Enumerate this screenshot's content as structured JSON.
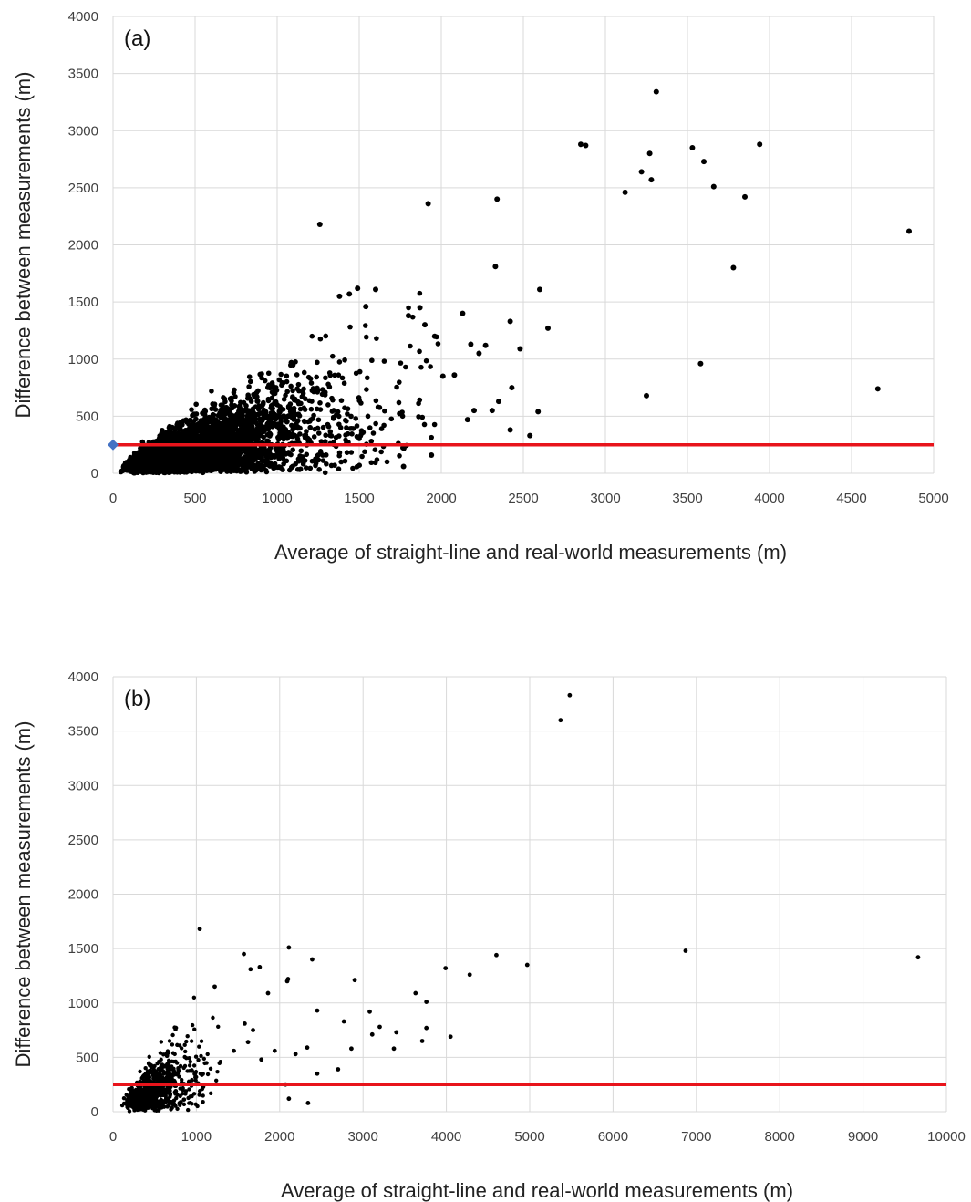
{
  "chart_data": [
    {
      "type": "scatter",
      "panel_label": "(a)",
      "xlabel": "Average of straight-line and real-world measurements (m)",
      "ylabel": "Difference between measurements (m)",
      "xlim": [
        0,
        5000
      ],
      "ylim": [
        0,
        4000
      ],
      "x_ticks": [
        0,
        500,
        1000,
        1500,
        2000,
        2500,
        3000,
        3500,
        4000,
        4500,
        5000
      ],
      "y_ticks": [
        0,
        500,
        1000,
        1500,
        2000,
        2500,
        3000,
        3500,
        4000
      ],
      "grid": true,
      "reference_line": {
        "y": 250,
        "color": "#e8141b"
      },
      "highlight_point": {
        "x": 0,
        "y": 250,
        "color": "#4472c4",
        "shape": "diamond"
      },
      "point_color": "#000000",
      "dense_cluster": {
        "x_range": [
          0,
          2000
        ],
        "description": "thousands of points concentrated below x=2000, y=1600"
      },
      "points": [
        [
          1260,
          2180
        ],
        [
          1920,
          2360
        ],
        [
          2340,
          2400
        ],
        [
          2330,
          1810
        ],
        [
          2600,
          1610
        ],
        [
          2650,
          1270
        ],
        [
          2130,
          1400
        ],
        [
          2420,
          1330
        ],
        [
          2480,
          1090
        ],
        [
          2430,
          750
        ],
        [
          2590,
          540
        ],
        [
          2540,
          330
        ],
        [
          2420,
          380
        ],
        [
          2350,
          630
        ],
        [
          2200,
          550
        ],
        [
          2310,
          550
        ],
        [
          2230,
          1050
        ],
        [
          2180,
          1130
        ],
        [
          2270,
          1120
        ],
        [
          2160,
          470
        ],
        [
          1960,
          1200
        ],
        [
          1900,
          1300
        ],
        [
          1870,
          1450
        ],
        [
          1800,
          1380
        ],
        [
          1490,
          1620
        ],
        [
          1600,
          1610
        ],
        [
          1440,
          1570
        ],
        [
          1540,
          1460
        ],
        [
          1380,
          1550
        ],
        [
          2850,
          2880
        ],
        [
          2880,
          2870
        ],
        [
          3310,
          3340
        ],
        [
          3220,
          2640
        ],
        [
          3270,
          2800
        ],
        [
          3280,
          2570
        ],
        [
          3120,
          2460
        ],
        [
          3530,
          2850
        ],
        [
          3600,
          2730
        ],
        [
          3660,
          2510
        ],
        [
          3850,
          2420
        ],
        [
          3940,
          2880
        ],
        [
          3780,
          1800
        ],
        [
          3580,
          960
        ],
        [
          3250,
          680
        ],
        [
          4660,
          740
        ],
        [
          4850,
          2120
        ],
        [
          1770,
          60
        ],
        [
          1940,
          160
        ],
        [
          2010,
          850
        ],
        [
          2080,
          860
        ]
      ]
    },
    {
      "type": "scatter",
      "panel_label": "(b)",
      "xlabel": "Average of straight-line and real-world measurements (m)",
      "ylabel": "Difference between measurements (m)",
      "xlim": [
        0,
        10000
      ],
      "ylim": [
        0,
        4000
      ],
      "x_ticks": [
        0,
        1000,
        2000,
        3000,
        4000,
        5000,
        6000,
        7000,
        8000,
        9000,
        10000
      ],
      "y_ticks": [
        0,
        500,
        1000,
        1500,
        2000,
        2500,
        3000,
        3500,
        4000
      ],
      "grid": true,
      "reference_line": {
        "y": 250,
        "color": "#e8141b"
      },
      "point_color": "#000000",
      "dense_cluster": {
        "x_range": [
          0,
          1200
        ],
        "description": "hundreds of points concentrated below x=1200, y=1100"
      },
      "points": [
        [
          5480,
          3830
        ],
        [
          5370,
          3600
        ],
        [
          1040,
          1680
        ],
        [
          2110,
          1510
        ],
        [
          1570,
          1450
        ],
        [
          1760,
          1330
        ],
        [
          1650,
          1310
        ],
        [
          2390,
          1400
        ],
        [
          4600,
          1440
        ],
        [
          4970,
          1350
        ],
        [
          6870,
          1480
        ],
        [
          9660,
          1420
        ],
        [
          3990,
          1320
        ],
        [
          4280,
          1260
        ],
        [
          2900,
          1210
        ],
        [
          2090,
          1200
        ],
        [
          2100,
          1220
        ],
        [
          1860,
          1090
        ],
        [
          1220,
          1150
        ],
        [
          3630,
          1090
        ],
        [
          3760,
          1010
        ],
        [
          3080,
          920
        ],
        [
          2450,
          930
        ],
        [
          2770,
          830
        ],
        [
          3200,
          780
        ],
        [
          3760,
          770
        ],
        [
          3400,
          730
        ],
        [
          3110,
          710
        ],
        [
          3710,
          650
        ],
        [
          4050,
          690
        ],
        [
          3370,
          580
        ],
        [
          2860,
          580
        ],
        [
          2330,
          590
        ],
        [
          2190,
          530
        ],
        [
          2700,
          390
        ],
        [
          2450,
          350
        ],
        [
          2070,
          250
        ],
        [
          2110,
          120
        ],
        [
          2340,
          80
        ],
        [
          1580,
          810
        ],
        [
          1680,
          750
        ],
        [
          1940,
          560
        ],
        [
          1780,
          480
        ],
        [
          1620,
          640
        ],
        [
          1450,
          560
        ]
      ]
    }
  ]
}
